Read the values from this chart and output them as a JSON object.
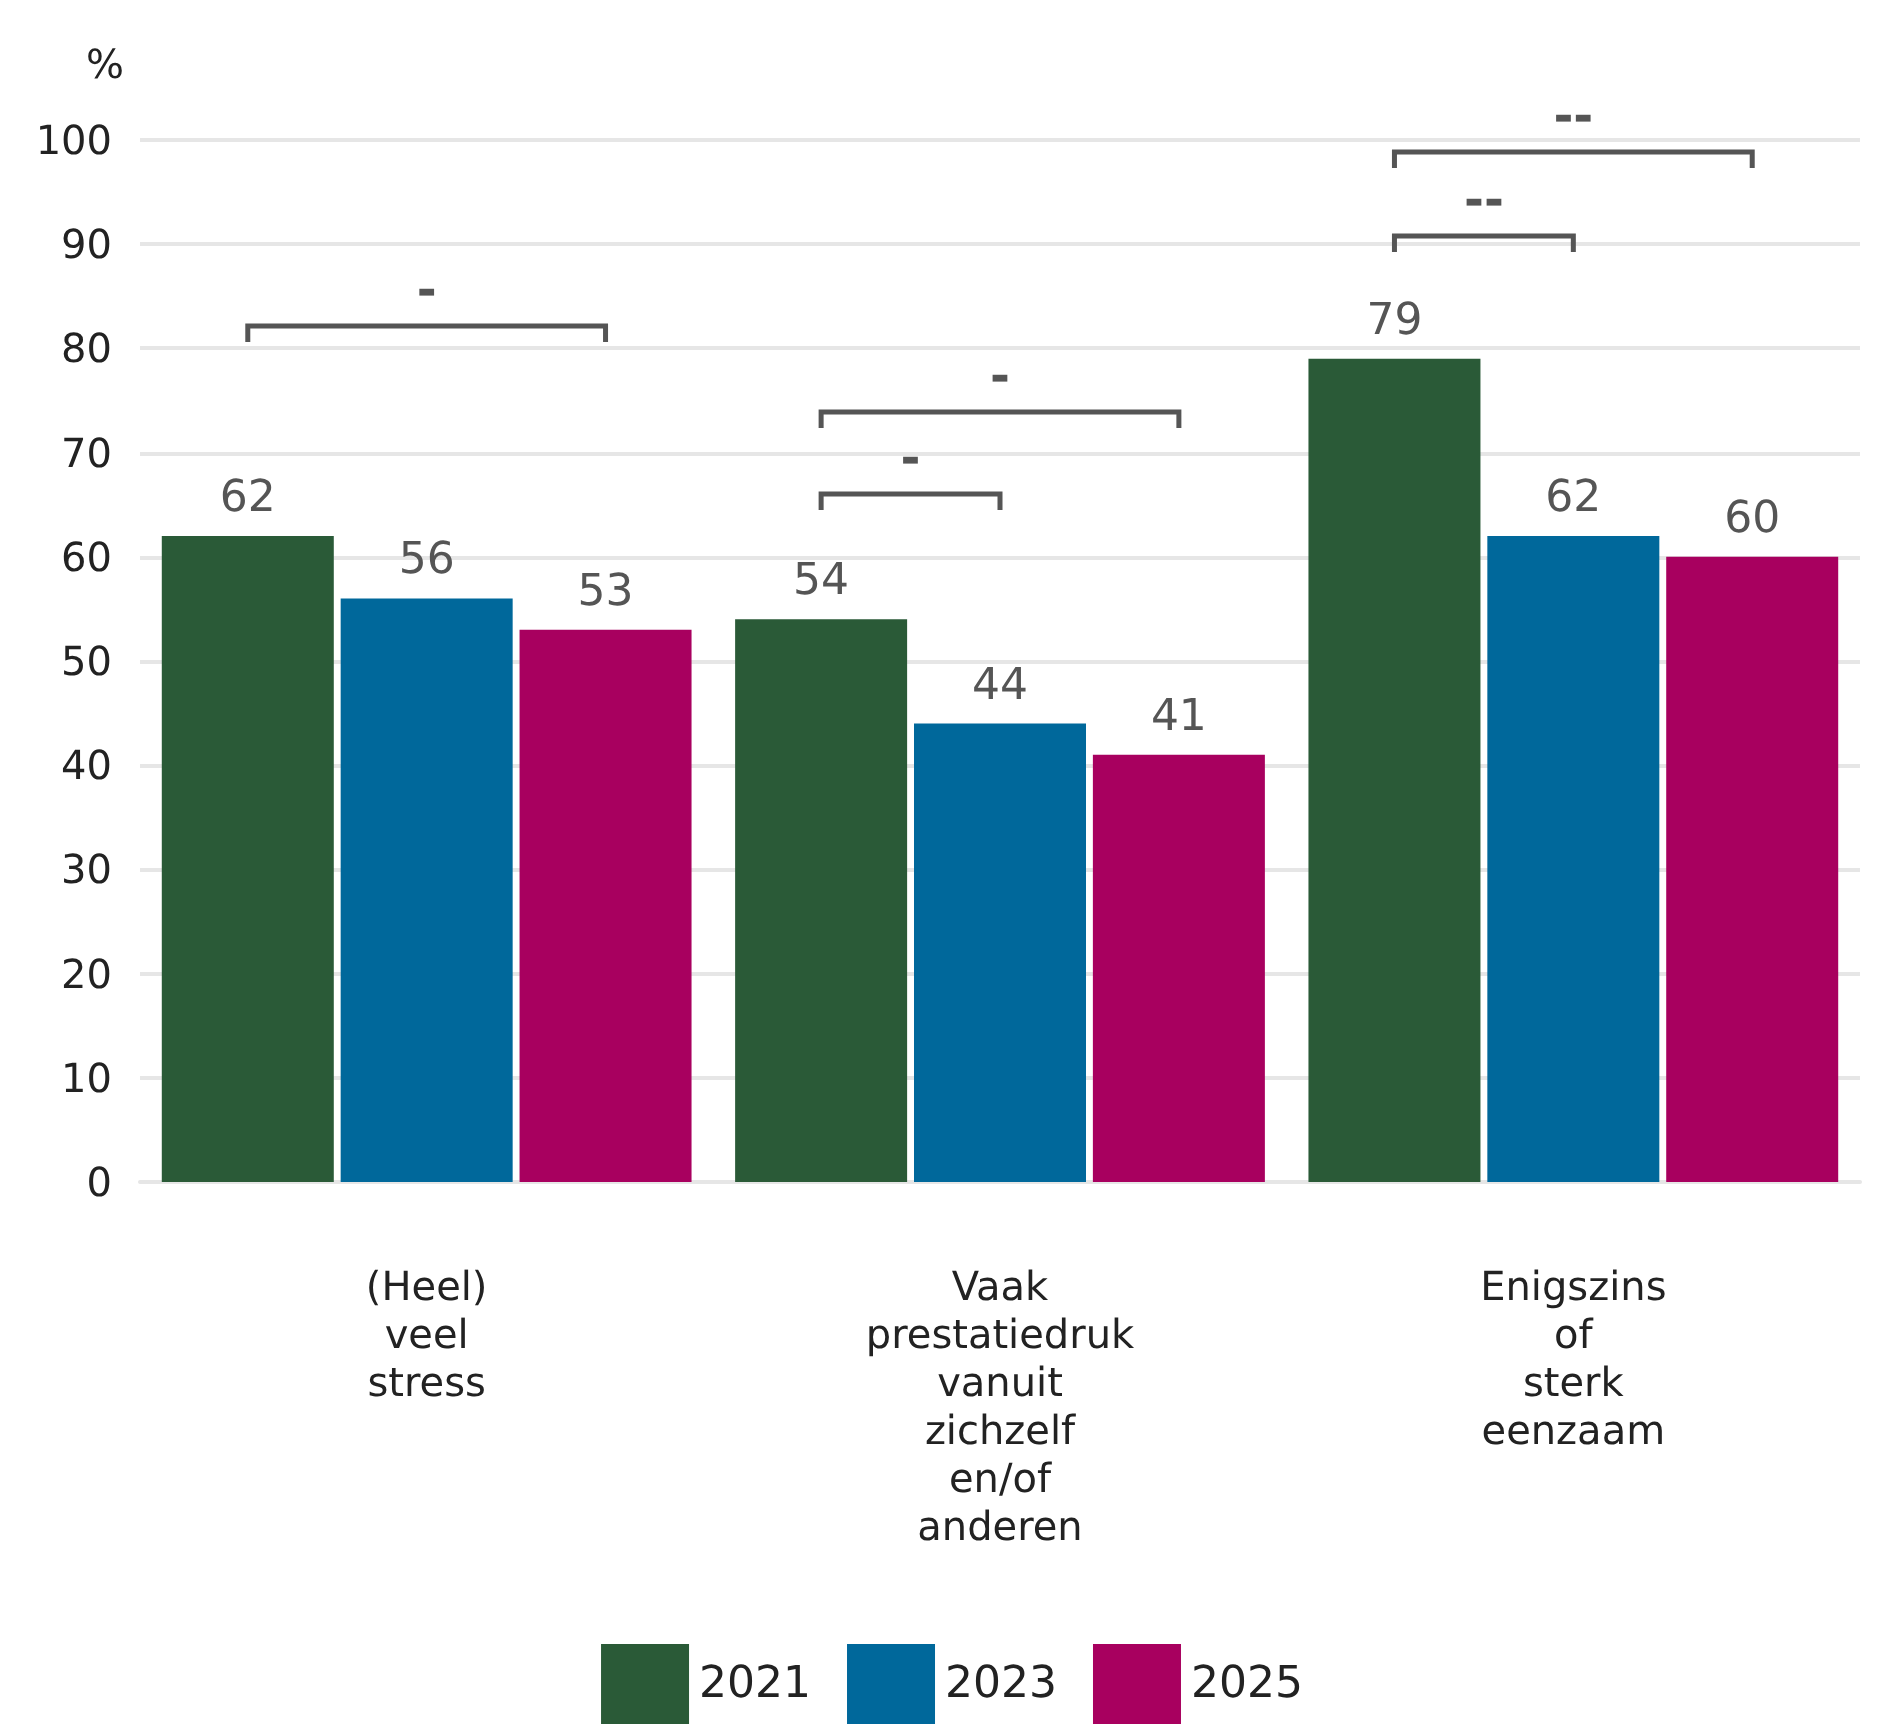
{
  "chart_data": {
    "type": "bar",
    "ylabel": "%",
    "categories": [
      "(Heel) veel stress",
      "Vaak prestatiedruk vanuit zichzelf en/of anderen",
      "Enigszins of sterk eenzaam"
    ],
    "series": [
      {
        "name": "2021",
        "color": "#2a5a37",
        "values": [
          62,
          54,
          79
        ]
      },
      {
        "name": "2023",
        "color": "#00689b",
        "values": [
          56,
          44,
          62
        ]
      },
      {
        "name": "2025",
        "color": "#a8005f",
        "values": [
          53,
          41,
          60
        ]
      }
    ],
    "ylim": [
      0,
      100
    ],
    "yticks": [
      0,
      10,
      20,
      30,
      40,
      50,
      60,
      70,
      80,
      90,
      100
    ],
    "grid": "y",
    "legend": "bottom",
    "data_labels": true,
    "annotations": [
      "-",
      "-",
      "-",
      "--",
      "--"
    ]
  }
}
